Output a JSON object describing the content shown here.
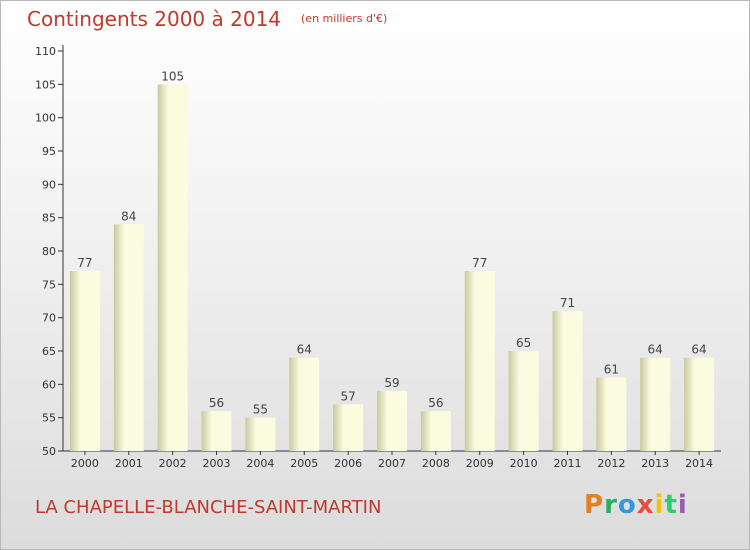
{
  "header": {
    "title": "Contingents 2000 à 2014",
    "unit": "(en milliers d'€)"
  },
  "footer": {
    "commune": "LA CHAPELLE-BLANCHE-SAINT-MARTIN",
    "brand": "Proxiti"
  },
  "colors": {
    "title": "#c0392b",
    "bar_light": "#fbfbe0",
    "bar_dark": "#c9c9a0",
    "brand": [
      "#e67e22",
      "#27ae60",
      "#3498db",
      "#e74c3c",
      "#f1c40f",
      "#2ecc71",
      "#9b59b6"
    ]
  },
  "chart_data": {
    "type": "bar",
    "title": "Contingents 2000 à 2014",
    "categories": [
      "2000",
      "2001",
      "2002",
      "2003",
      "2004",
      "2005",
      "2006",
      "2007",
      "2008",
      "2009",
      "2010",
      "2011",
      "2012",
      "2013",
      "2014"
    ],
    "values": [
      77,
      84,
      105,
      56,
      55,
      64,
      57,
      59,
      56,
      77,
      65,
      71,
      61,
      64,
      64
    ],
    "ylim": [
      50,
      110
    ],
    "yticks": [
      50,
      55,
      60,
      65,
      70,
      75,
      80,
      85,
      90,
      95,
      100,
      105,
      110
    ],
    "grid": false,
    "data_labels": true
  }
}
